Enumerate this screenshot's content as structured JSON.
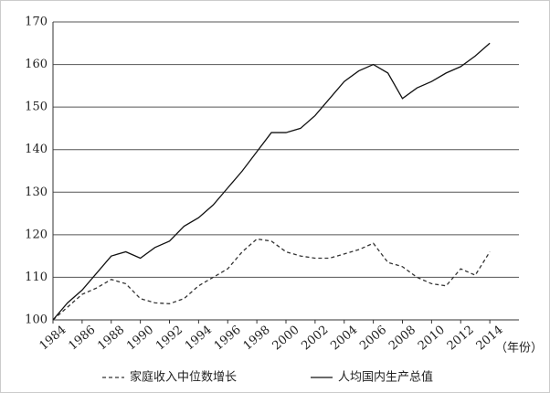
{
  "chart_data": {
    "type": "line",
    "x_label": "（年份）",
    "x": [
      1984,
      1985,
      1986,
      1987,
      1988,
      1989,
      1990,
      1991,
      1992,
      1993,
      1994,
      1995,
      1996,
      1997,
      1998,
      1999,
      2000,
      2001,
      2002,
      2003,
      2004,
      2005,
      2006,
      2007,
      2008,
      2009,
      2010,
      2011,
      2012,
      2013,
      2014
    ],
    "series": [
      {
        "name": "家庭收入中位数增长",
        "color": "#333333",
        "dash": true,
        "values": [
          100,
          103,
          106,
          107.5,
          109.5,
          108.5,
          105,
          104,
          103.8,
          105,
          108,
          110,
          112,
          116,
          119,
          118.5,
          116,
          115,
          114.5,
          114.5,
          115.5,
          116.5,
          118,
          113.5,
          112.5,
          110,
          108.5,
          108,
          112,
          110.5,
          116
        ]
      },
      {
        "name": "人均国内生产总值",
        "color": "#111111",
        "dash": false,
        "values": [
          100,
          104,
          107,
          111,
          115,
          116,
          114.5,
          117,
          118.5,
          122,
          124,
          127,
          131,
          135,
          139.5,
          144,
          144,
          145,
          148,
          152,
          156,
          158.5,
          160,
          158,
          152,
          154.5,
          156,
          158,
          159.5,
          162,
          165
        ]
      }
    ],
    "xlim": [
      1984,
      2016
    ],
    "xticks": [
      1984,
      1986,
      1988,
      1990,
      1992,
      1994,
      1996,
      1998,
      2000,
      2002,
      2004,
      2006,
      2008,
      2010,
      2012,
      2014
    ],
    "ylim": [
      100,
      170
    ],
    "yticks": [
      100,
      110,
      120,
      130,
      140,
      150,
      160,
      170
    ],
    "grid": true
  }
}
